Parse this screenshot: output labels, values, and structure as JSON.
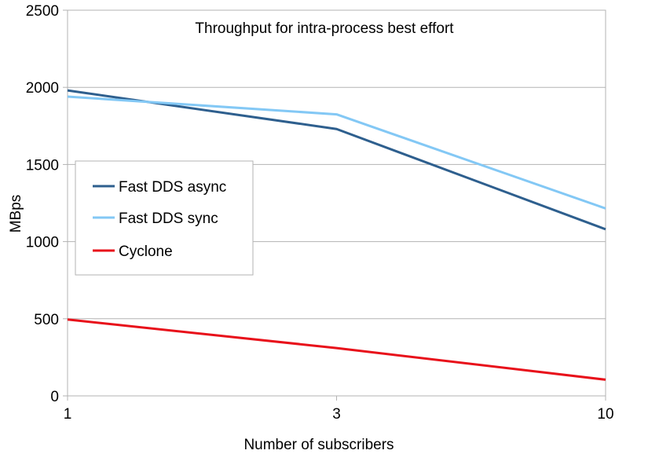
{
  "chart_data": {
    "type": "line",
    "title": "Throughput for intra-process best effort",
    "xlabel": "Number of subscribers",
    "ylabel": "MBps",
    "categories": [
      "1",
      "3",
      "10"
    ],
    "ylim": [
      0,
      2500
    ],
    "yticks": [
      "0",
      "500",
      "1000",
      "1500",
      "2000",
      "2500"
    ],
    "grid": true,
    "legend_position": "left",
    "series": [
      {
        "name": "Fast DDS async",
        "color": "#2e5f8e",
        "values": [
          1980,
          1730,
          1080
        ]
      },
      {
        "name": "Fast DDS sync",
        "color": "#83c8f5",
        "values": [
          1940,
          1825,
          1215
        ]
      },
      {
        "name": "Cyclone",
        "color": "#e8101a",
        "values": [
          495,
          310,
          105
        ]
      }
    ]
  }
}
